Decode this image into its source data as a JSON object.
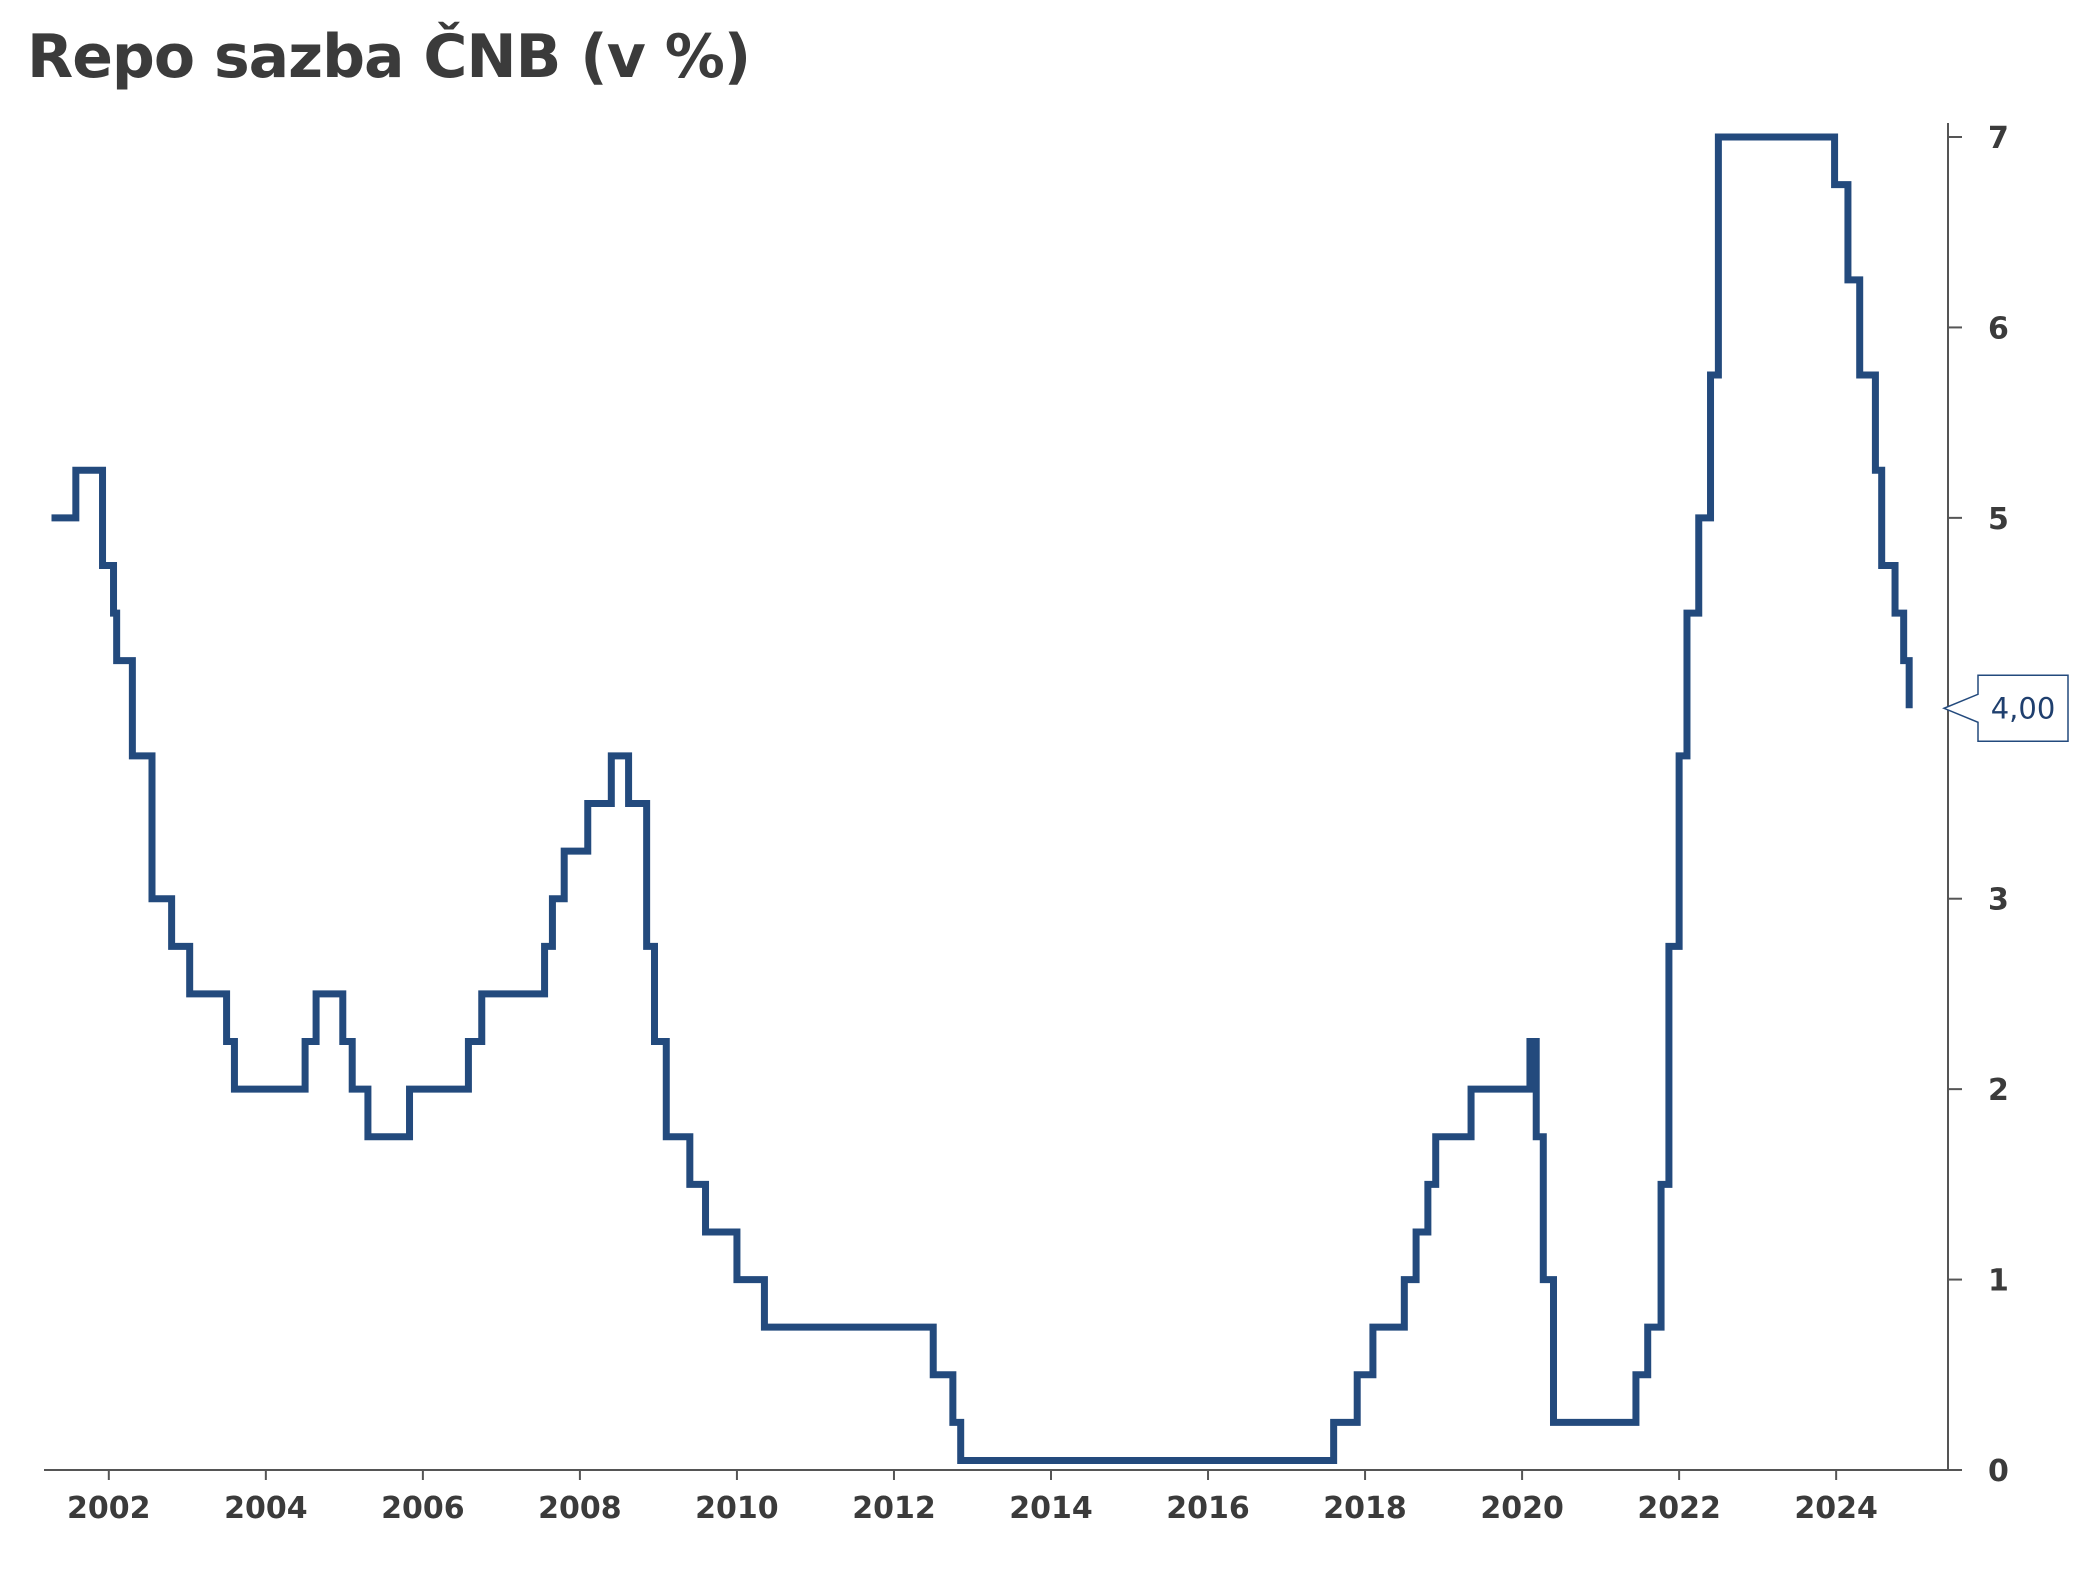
{
  "title": "Repo sazba ČNB (v %)",
  "colors": {
    "line": "#234a7d",
    "axis": "#555555",
    "text": "#3b3b3b",
    "callout_border": "#234a7d"
  },
  "chart_data": {
    "type": "line",
    "step": true,
    "title": "Repo sazba ČNB (v %)",
    "xlabel": "",
    "ylabel": "",
    "y_axis_position": "right",
    "grid": false,
    "xlim": [
      2001.2,
      2025.45
    ],
    "ylim": [
      0,
      7
    ],
    "x_ticks": [
      2002,
      2004,
      2006,
      2008,
      2010,
      2012,
      2014,
      2016,
      2018,
      2020,
      2022,
      2024
    ],
    "x_tick_labels": [
      "2002",
      "2004",
      "2006",
      "2008",
      "2010",
      "2012",
      "2014",
      "2016",
      "2018",
      "2020",
      "2022",
      "2024"
    ],
    "y_ticks": [
      0,
      1,
      2,
      3,
      4,
      5,
      6,
      7
    ],
    "y_tick_labels": [
      "0",
      "1",
      "2",
      "3",
      "5",
      "6",
      "7"
    ],
    "y_tick_label_values": [
      0,
      1,
      2,
      3,
      5,
      6,
      7
    ],
    "series": [
      {
        "x": [
          2001.27,
          2001.58,
          2001.92,
          2002.06,
          2002.1,
          2002.3,
          2002.55,
          2002.8,
          2003.03,
          2003.5,
          2003.6,
          2004.5,
          2004.64,
          2004.98,
          2005.1,
          2005.3,
          2005.83,
          2006.58,
          2006.75,
          2007.55,
          2007.65,
          2007.8,
          2008.1,
          2008.4,
          2008.62,
          2008.85,
          2008.95,
          2009.1,
          2009.4,
          2009.6,
          2010.0,
          2010.35,
          2012.5,
          2012.75,
          2012.85,
          2017.6,
          2017.9,
          2018.1,
          2018.5,
          2018.65,
          2018.8,
          2018.9,
          2019.35,
          2020.1,
          2020.18,
          2020.27,
          2020.4,
          2021.45,
          2021.6,
          2021.77,
          2021.87,
          2022.0,
          2022.1,
          2022.25,
          2022.4,
          2022.5,
          2023.98,
          2024.15,
          2024.3,
          2024.5,
          2024.58,
          2024.75,
          2024.86
        ],
        "y": [
          5.0,
          5.25,
          4.75,
          4.5,
          4.25,
          3.75,
          3.0,
          2.75,
          2.5,
          2.25,
          2.0,
          2.25,
          2.5,
          2.25,
          2.0,
          1.75,
          2.0,
          2.25,
          2.5,
          2.75,
          3.0,
          3.25,
          3.5,
          3.75,
          3.5,
          2.75,
          2.25,
          1.75,
          1.5,
          1.25,
          1.0,
          0.75,
          0.5,
          0.25,
          0.05,
          0.25,
          0.5,
          0.75,
          1.0,
          1.25,
          1.5,
          1.75,
          2.0,
          2.25,
          1.75,
          1.0,
          0.25,
          0.5,
          0.75,
          1.5,
          2.75,
          3.75,
          4.5,
          5.0,
          5.75,
          7.0,
          6.75,
          6.25,
          5.75,
          5.25,
          4.75,
          4.5,
          4.25
        ],
        "x_end": 2024.93,
        "last_value": 4.0
      }
    ],
    "callout": {
      "value": 4.0,
      "label": "4,00"
    }
  }
}
